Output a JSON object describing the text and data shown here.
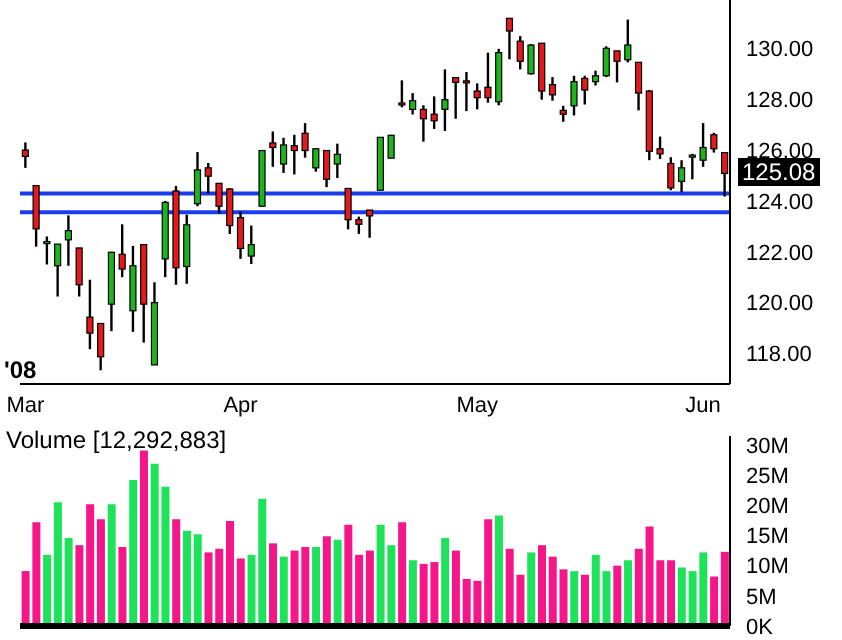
{
  "chart_data": [
    {
      "type": "candlestick",
      "categories": [
        "Mar",
        null,
        null,
        null,
        null,
        null,
        null,
        null,
        null,
        null,
        null,
        null,
        null,
        null,
        null,
        null,
        null,
        null,
        null,
        null,
        "Apr",
        null,
        null,
        null,
        null,
        null,
        null,
        null,
        null,
        null,
        null,
        null,
        null,
        null,
        null,
        null,
        null,
        null,
        null,
        null,
        null,
        null,
        "May",
        null,
        null,
        null,
        null,
        null,
        null,
        null,
        null,
        null,
        null,
        null,
        null,
        null,
        null,
        null,
        null,
        null,
        null,
        null,
        null,
        "Jun",
        null,
        null
      ],
      "ohlc": [
        [
          126.0,
          126.3,
          125.3,
          125.75
        ],
        [
          124.6,
          124.6,
          122.2,
          122.9
        ],
        [
          122.35,
          122.6,
          121.5,
          122.4
        ],
        [
          121.45,
          122.3,
          120.24,
          122.3
        ],
        [
          122.47,
          123.43,
          121.45,
          122.83
        ],
        [
          122.15,
          122.15,
          120.24,
          120.7
        ],
        [
          119.43,
          120.9,
          118.17,
          118.8
        ],
        [
          119.18,
          119.2,
          117.34,
          117.87
        ],
        [
          119.94,
          122.0,
          118.88,
          121.98
        ],
        [
          121.9,
          123.08,
          121.0,
          121.32
        ],
        [
          119.68,
          122.23,
          118.85,
          121.45
        ],
        [
          122.28,
          122.3,
          118.43,
          119.94
        ],
        [
          117.55,
          120.8,
          117.55,
          120.0
        ],
        [
          121.72,
          124.0,
          121.0,
          123.94
        ],
        [
          124.39,
          124.59,
          120.7,
          121.37
        ],
        [
          121.42,
          123.46,
          120.74,
          123.06
        ],
        [
          123.89,
          125.92,
          123.79,
          125.22
        ],
        [
          125.3,
          125.49,
          124.29,
          124.97
        ],
        [
          124.69,
          124.7,
          123.5,
          123.79
        ],
        [
          124.47,
          124.5,
          122.7,
          123.03
        ],
        [
          123.34,
          123.58,
          121.72,
          122.13
        ],
        [
          121.83,
          123.03,
          121.52,
          122.28
        ],
        [
          123.79,
          126.0,
          123.79,
          125.98
        ],
        [
          126.28,
          126.73,
          125.34,
          126.1
        ],
        [
          125.45,
          126.48,
          125.1,
          126.2
        ],
        [
          126.17,
          126.6,
          125.04,
          125.98
        ],
        [
          126.66,
          127.06,
          125.7,
          125.98
        ],
        [
          125.3,
          126.05,
          125.15,
          126.05
        ],
        [
          125.98,
          126.0,
          124.54,
          124.85
        ],
        [
          125.45,
          126.25,
          124.9,
          125.83
        ],
        [
          124.49,
          124.5,
          122.88,
          123.26
        ],
        [
          123.26,
          123.38,
          122.7,
          123.08
        ],
        [
          123.64,
          123.64,
          122.55,
          123.41
        ],
        [
          124.42,
          126.5,
          124.42,
          126.5
        ],
        [
          125.68,
          126.6,
          125.68,
          126.58
        ],
        [
          127.85,
          128.74,
          127.68,
          127.83
        ],
        [
          127.6,
          128.24,
          127.4,
          127.94
        ],
        [
          127.6,
          127.76,
          126.33,
          127.23
        ],
        [
          127.41,
          128.11,
          126.83,
          127.15
        ],
        [
          127.6,
          129.17,
          126.75,
          127.98
        ],
        [
          128.85,
          128.85,
          127.23,
          128.66
        ],
        [
          128.72,
          129.07,
          127.53,
          128.7
        ],
        [
          128.32,
          128.62,
          127.6,
          128.06
        ],
        [
          128.47,
          129.83,
          127.86,
          128.06
        ],
        [
          127.9,
          129.98,
          127.76,
          129.83
        ],
        [
          131.18,
          131.18,
          129.57,
          130.68
        ],
        [
          130.28,
          130.48,
          129.17,
          129.49
        ],
        [
          129.0,
          130.17,
          128.97,
          130.13
        ],
        [
          130.2,
          130.2,
          127.98,
          128.32
        ],
        [
          128.57,
          128.87,
          127.94,
          128.17
        ],
        [
          127.56,
          127.74,
          127.11,
          127.41
        ],
        [
          127.74,
          128.92,
          127.36,
          128.69
        ],
        [
          128.82,
          128.92,
          127.79,
          128.36
        ],
        [
          128.69,
          129.12,
          128.54,
          128.92
        ],
        [
          128.92,
          130.08,
          128.87,
          130.0
        ],
        [
          129.9,
          129.9,
          128.66,
          129.49
        ],
        [
          129.55,
          131.13,
          129.45,
          130.13
        ],
        [
          129.45,
          129.45,
          127.56,
          128.24
        ],
        [
          128.32,
          128.36,
          125.6,
          125.95
        ],
        [
          126.05,
          126.53,
          125.65,
          125.85
        ],
        [
          125.47,
          125.72,
          124.42,
          124.51
        ],
        [
          124.77,
          125.6,
          124.34,
          125.3
        ],
        [
          125.78,
          125.85,
          124.85,
          125.8
        ],
        [
          125.6,
          127.06,
          125.34,
          126.1
        ],
        [
          126.6,
          126.68,
          125.9,
          126.05
        ],
        [
          125.9,
          125.9,
          124.17,
          125.08
        ]
      ],
      "colors": [
        "#e31a1c",
        "#e31a1c",
        "#1db41d",
        "#1db41d",
        "#1db41d",
        "#e31a1c",
        "#e31a1c",
        "#e31a1c",
        "#1db41d",
        "#e31a1c",
        "#1db41d",
        "#e31a1c",
        "#1db41d",
        "#1db41d",
        "#e31a1c",
        "#1db41d",
        "#1db41d",
        "#e31a1c",
        "#e31a1c",
        "#e31a1c",
        "#e31a1c",
        "#1db41d",
        "#1db41d",
        "#e31a1c",
        "#1db41d",
        "#e31a1c",
        "#e31a1c",
        "#1db41d",
        "#e31a1c",
        "#1db41d",
        "#e31a1c",
        "#e31a1c",
        "#e31a1c",
        "#1db41d",
        "#1db41d",
        "#e31a1c",
        "#1db41d",
        "#e31a1c",
        "#e31a1c",
        "#1db41d",
        "#e31a1c",
        "#e31a1c",
        "#e31a1c",
        "#e31a1c",
        "#1db41d",
        "#e31a1c",
        "#e31a1c",
        "#1db41d",
        "#e31a1c",
        "#e31a1c",
        "#e31a1c",
        "#1db41d",
        "#e31a1c",
        "#1db41d",
        "#1db41d",
        "#e31a1c",
        "#1db41d",
        "#e31a1c",
        "#e31a1c",
        "#e31a1c",
        "#e31a1c",
        "#1db41d",
        "#1db41d",
        "#1db41d",
        "#e31a1c",
        "#e31a1c"
      ],
      "ylim": [
        116.8,
        131.9
      ],
      "yticks": [
        {
          "value": 118,
          "label": "118.00"
        },
        {
          "value": 120,
          "label": "120.00"
        },
        {
          "value": 122,
          "label": "122.00"
        },
        {
          "value": 124,
          "label": "124.00"
        },
        {
          "value": 126,
          "label": "126.00"
        },
        {
          "value": 128,
          "label": "128.00"
        },
        {
          "value": 130,
          "label": "130.00"
        }
      ],
      "ref_lines": [
        {
          "axis": "y",
          "value": 124.29,
          "color": "#1a3cf0"
        },
        {
          "axis": "y",
          "value": 123.55,
          "color": "#1a3cf0"
        }
      ],
      "annotations": [
        "'08",
        "125.08"
      ]
    },
    {
      "type": "bar",
      "title": "Volume [12,292,883]",
      "categories": [
        null,
        null,
        null,
        null,
        null,
        null,
        null,
        null,
        null,
        null,
        null,
        null,
        null,
        null,
        null,
        null,
        null,
        null,
        null,
        null,
        null,
        null,
        null,
        null,
        null,
        null,
        null,
        null,
        null,
        null,
        null,
        null,
        null,
        null,
        null,
        null,
        null,
        null,
        null,
        null,
        null,
        null,
        null,
        null,
        null,
        null,
        null,
        null,
        null,
        null,
        null,
        null,
        null,
        null,
        null,
        null,
        null,
        null,
        null,
        null,
        null,
        null,
        null,
        null,
        null,
        null
      ],
      "values": [
        9.1,
        17.2,
        11.8,
        20.5,
        14.6,
        13.4,
        20.2,
        17.7,
        20.2,
        13.1,
        24.2,
        29.1,
        26.9,
        23.1,
        17.7,
        15.8,
        15.2,
        12.2,
        12.8,
        17.4,
        11.2,
        11.8,
        21.1,
        13.7,
        11.5,
        12.5,
        13.1,
        13.1,
        14.9,
        14.3,
        16.8,
        11.8,
        12.5,
        16.8,
        13.4,
        17.2,
        10.9,
        10.3,
        10.6,
        14.6,
        12.5,
        7.8,
        7.5,
        17.7,
        18.3,
        12.8,
        8.5,
        12.2,
        13.4,
        11.5,
        9.4,
        9.1,
        8.5,
        11.8,
        9.1,
        10.0,
        10.9,
        12.8,
        16.5,
        10.9,
        10.9,
        9.7,
        9.1,
        12.2,
        8.2,
        12.3
      ],
      "colors": [
        "#f5168a",
        "#f5168a",
        "#1ee35a",
        "#1ee35a",
        "#1ee35a",
        "#f5168a",
        "#f5168a",
        "#f5168a",
        "#1ee35a",
        "#f5168a",
        "#1ee35a",
        "#f5168a",
        "#1ee35a",
        "#1ee35a",
        "#f5168a",
        "#1ee35a",
        "#1ee35a",
        "#f5168a",
        "#f5168a",
        "#f5168a",
        "#f5168a",
        "#1ee35a",
        "#1ee35a",
        "#f5168a",
        "#1ee35a",
        "#f5168a",
        "#f5168a",
        "#1ee35a",
        "#f5168a",
        "#1ee35a",
        "#f5168a",
        "#f5168a",
        "#f5168a",
        "#1ee35a",
        "#1ee35a",
        "#f5168a",
        "#1ee35a",
        "#f5168a",
        "#f5168a",
        "#1ee35a",
        "#f5168a",
        "#f5168a",
        "#f5168a",
        "#f5168a",
        "#1ee35a",
        "#f5168a",
        "#f5168a",
        "#1ee35a",
        "#f5168a",
        "#f5168a",
        "#f5168a",
        "#1ee35a",
        "#f5168a",
        "#1ee35a",
        "#1ee35a",
        "#f5168a",
        "#1ee35a",
        "#f5168a",
        "#f5168a",
        "#f5168a",
        "#f5168a",
        "#1ee35a",
        "#1ee35a",
        "#1ee35a",
        "#f5168a",
        "#f5168a"
      ],
      "ylim": [
        0,
        31.5
      ],
      "yticks": [
        {
          "value": 0,
          "label": "0K"
        },
        {
          "value": 5,
          "label": "5M"
        },
        {
          "value": 10,
          "label": "10M"
        },
        {
          "value": 15,
          "label": "15M"
        },
        {
          "value": 20,
          "label": "20M"
        },
        {
          "value": 25,
          "label": "25M"
        },
        {
          "value": 30,
          "label": "30M"
        }
      ],
      "tick_labels": "y"
    }
  ]
}
